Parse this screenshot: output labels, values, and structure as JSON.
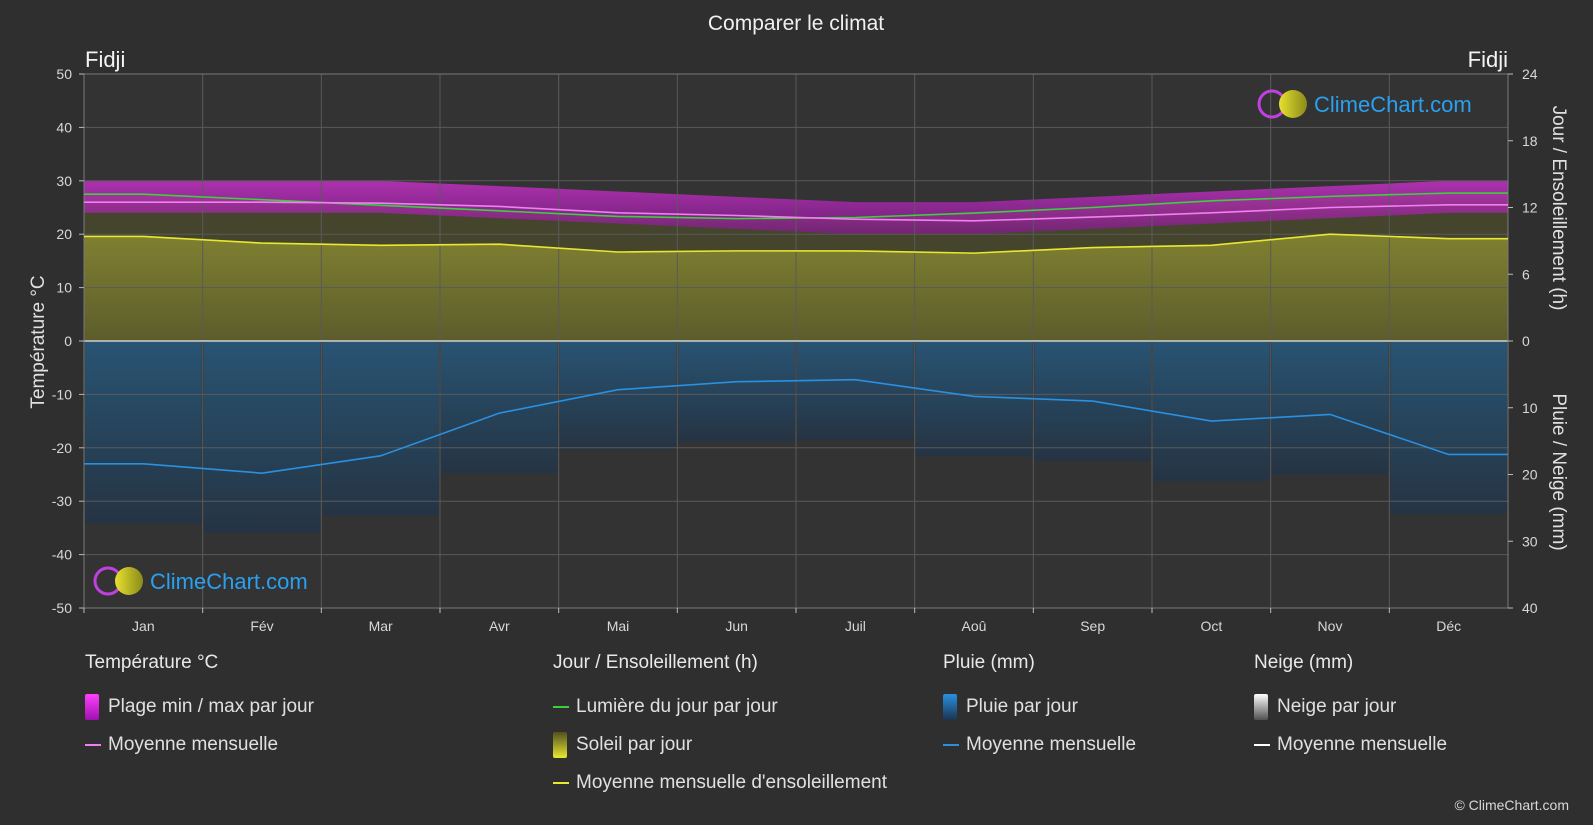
{
  "title": "Comparer le climat",
  "location_left": "Fidji",
  "location_right": "Fidji",
  "logo_text": "ClimeChart.com",
  "copyright": "© ClimeChart.com",
  "axes": {
    "left_label": "Température °C",
    "right_top_label": "Jour / Ensoleillement (h)",
    "right_bottom_label": "Pluie / Neige (mm)",
    "left_ticks": [
      50,
      40,
      30,
      20,
      10,
      0,
      -10,
      -20,
      -30,
      -40,
      -50
    ],
    "right_top_ticks": [
      24,
      18,
      12,
      6,
      0
    ],
    "right_bottom_ticks": [
      10,
      20,
      30,
      40
    ]
  },
  "legend": {
    "temperature": {
      "heading": "Température °C",
      "range_label": "Plage min / max par jour",
      "mean_label": "Moyenne mensuelle"
    },
    "sun": {
      "heading": "Jour / Ensoleillement (h)",
      "daylight_label": "Lumière du jour par jour",
      "sun_label": "Soleil par jour",
      "sun_mean_label": "Moyenne mensuelle d'ensoleillement"
    },
    "rain": {
      "heading": "Pluie (mm)",
      "rain_label": "Pluie par jour",
      "mean_label": "Moyenne mensuelle"
    },
    "snow": {
      "heading": "Neige (mm)",
      "snow_label": "Neige par jour",
      "mean_label": "Moyenne mensuelle"
    }
  },
  "colors": {
    "background": "#2f2f2f",
    "temp_range": "#e020d0",
    "temp_mean": "#f080f0",
    "daylight": "#3cd03c",
    "sunshine_fill": "#7a7a2a",
    "sunshine_mean": "#e8e830",
    "rain_fill": "#1e6aa0",
    "rain_mean": "#2a90e0",
    "snow_mean": "#ffffff",
    "logo_blue": "#2aa0f0"
  },
  "chart_data": {
    "type": "line",
    "categories": [
      "Jan",
      "Fév",
      "Mar",
      "Avr",
      "Mai",
      "Jun",
      "Juil",
      "Aoû",
      "Sep",
      "Oct",
      "Nov",
      "Déc"
    ],
    "ylim_temperature": [
      -50,
      50
    ],
    "ylim_hours": [
      0,
      24
    ],
    "ylim_precip_mm": [
      0,
      40
    ],
    "series": [
      {
        "name": "Plage min / max par jour",
        "unit": "°C",
        "min": [
          24,
          24,
          24,
          23,
          22,
          21,
          20,
          20,
          21,
          22,
          23,
          24
        ],
        "max": [
          30,
          30,
          30,
          29,
          28,
          27,
          26,
          26,
          27,
          28,
          29,
          30
        ]
      },
      {
        "name": "Moyenne mensuelle (température)",
        "unit": "°C",
        "values": [
          26.0,
          26.0,
          25.8,
          25.2,
          24.0,
          23.5,
          22.8,
          22.5,
          23.2,
          24.0,
          25.0,
          25.5
        ]
      },
      {
        "name": "Lumière du jour par jour",
        "unit": "h",
        "values": [
          13.2,
          12.7,
          12.2,
          11.7,
          11.2,
          11.0,
          11.1,
          11.5,
          12.0,
          12.6,
          13.0,
          13.3
        ]
      },
      {
        "name": "Moyenne mensuelle d'ensoleillement",
        "unit": "h",
        "values": [
          9.4,
          8.8,
          8.6,
          8.7,
          8.0,
          8.1,
          8.1,
          7.9,
          8.4,
          8.6,
          9.6,
          9.2
        ]
      },
      {
        "name": "Moyenne mensuelle (pluie)",
        "unit": "mm",
        "values": [
          18.4,
          19.8,
          17.2,
          10.8,
          7.3,
          6.1,
          5.8,
          8.3,
          9.0,
          12.0,
          11.0,
          17.0
        ]
      },
      {
        "name": "Moyenne mensuelle (neige)",
        "unit": "mm",
        "values": [
          0,
          0,
          0,
          0,
          0,
          0,
          0,
          0,
          0,
          0,
          0,
          0
        ]
      }
    ]
  }
}
